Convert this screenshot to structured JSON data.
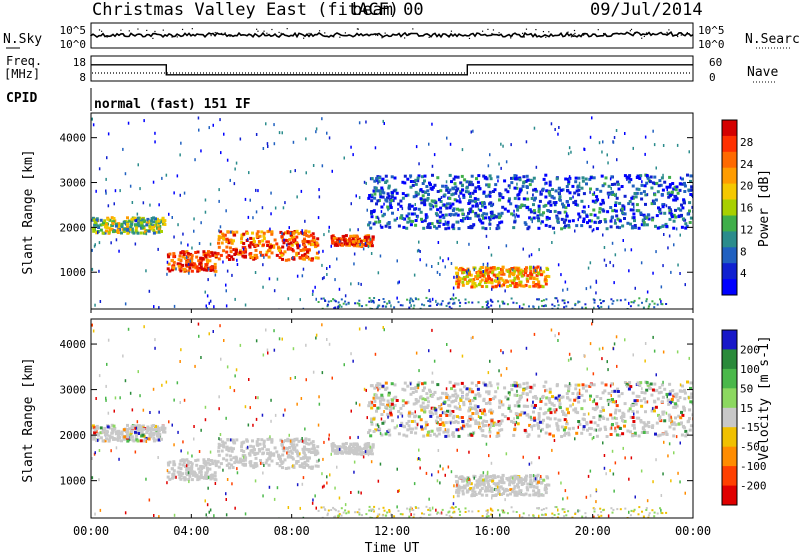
{
  "header": {
    "title": "Christmas Valley East (fitACF)",
    "beam": "beam 00",
    "date": "09/Jul/2014"
  },
  "chart_data": [
    {
      "type": "line",
      "panel": "noise",
      "left_label": "N.Sky",
      "right_label": "N.Search",
      "yticks_left": [
        "10^5",
        "10^0"
      ],
      "yticks_right": [
        "10^5",
        "10^0"
      ]
    },
    {
      "type": "line",
      "panel": "frequency",
      "left_label_1": "Freq.",
      "left_label_2": "[MHz]",
      "right_label": "Nave",
      "yticks_left": [
        "18",
        "8"
      ],
      "yticks_right": [
        "60",
        "0"
      ],
      "freq_steps": [
        {
          "t": 0.0,
          "f": 14.5
        },
        {
          "t": 3.0,
          "f": 14.5
        },
        {
          "t": 3.0,
          "f": 10.5
        },
        {
          "t": 15.0,
          "f": 10.5
        },
        {
          "t": 15.0,
          "f": 14.5
        },
        {
          "t": 24.0,
          "f": 14.5
        }
      ],
      "ylim": [
        8,
        18
      ]
    },
    {
      "type": "table",
      "panel": "cpid",
      "label": "CPID",
      "text": "normal (fast) 151 IF"
    },
    {
      "type": "heatmap",
      "panel": "power",
      "ylabel": "Slant Range [km]",
      "yticks": [
        "1000",
        "2000",
        "3000",
        "4000"
      ],
      "ylim": [
        180,
        4550
      ],
      "colorbar_label": "Power [dB]",
      "colorbar_ticks": [
        "28",
        "24",
        "20",
        "16",
        "12",
        "8",
        "4"
      ],
      "colorbar_colors": [
        "#d40000",
        "#ff3000",
        "#ff6a00",
        "#ff9c00",
        "#f5c800",
        "#a8d000",
        "#3fae4a",
        "#2b8c8c",
        "#2060c0",
        "#1020d0",
        "#0000ff"
      ],
      "features": [
        {
          "t0": 0.0,
          "t1": 2.9,
          "r0": 1900,
          "r1": 2250,
          "level": 0.45
        },
        {
          "t0": 3.0,
          "t1": 5.0,
          "r0": 1050,
          "r1": 1500,
          "level": 0.9
        },
        {
          "t0": 5.0,
          "t1": 9.0,
          "r0": 1300,
          "r1": 1950,
          "level": 0.85
        },
        {
          "t0": 9.5,
          "t1": 11.2,
          "r0": 1600,
          "r1": 1850,
          "level": 0.9
        },
        {
          "t0": 14.5,
          "t1": 18.2,
          "r0": 700,
          "r1": 1150,
          "level": 0.7
        },
        {
          "t0": 11.0,
          "t1": 24.0,
          "r0": 2000,
          "r1": 3200,
          "level": 0.15
        }
      ]
    },
    {
      "type": "heatmap",
      "panel": "velocity",
      "ylabel": "Slant Range [km]",
      "yticks": [
        "1000",
        "2000",
        "3000",
        "4000"
      ],
      "ylim": [
        180,
        4550
      ],
      "colorbar_label": "Velocity [m s-1]",
      "colorbar_ticks": [
        "200",
        "100",
        "50",
        "15",
        "-15",
        "-50",
        "-100",
        "-200"
      ],
      "colorbar_colors": [
        "#1818c8",
        "#2a8a3a",
        "#4ab84a",
        "#8cd860",
        "#c8c8c8",
        "#f0c000",
        "#ff8c00",
        "#ff4000",
        "#e00000"
      ],
      "xlabel": "Time UT",
      "xticks": [
        "00:00",
        "04:00",
        "08:00",
        "12:00",
        "16:00",
        "20:00",
        "00:00"
      ],
      "xlim": [
        0,
        24
      ]
    }
  ]
}
